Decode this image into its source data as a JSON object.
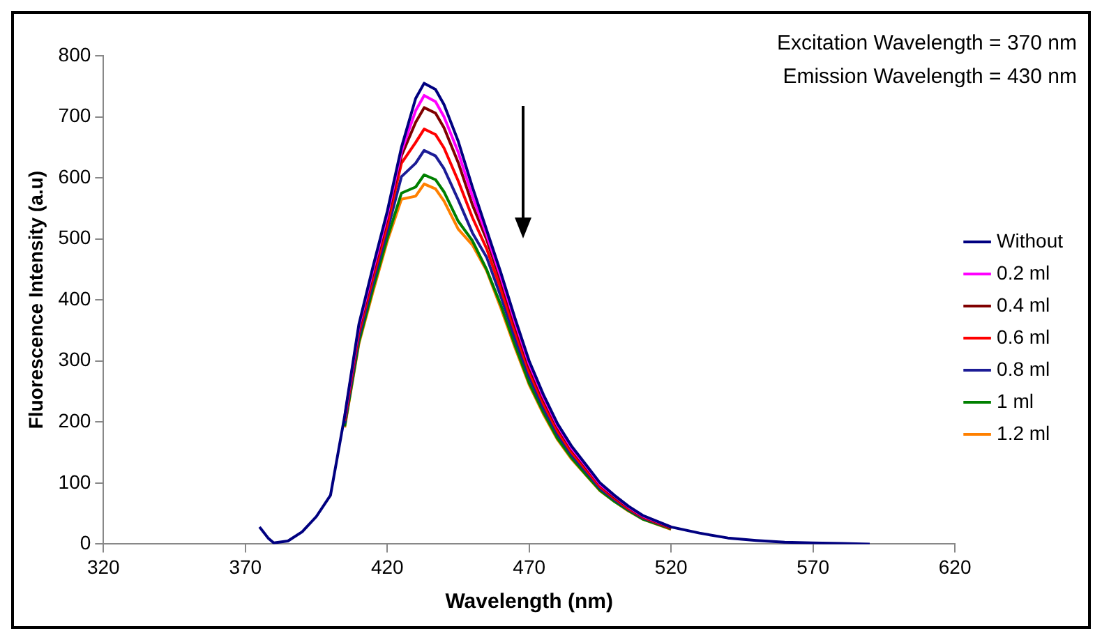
{
  "chart_data": {
    "type": "line",
    "xlabel": "Wavelength (nm)",
    "ylabel": "Fluorescence Intensity (a.u)",
    "annotations": [
      "Excitation Wavelength = 370 nm",
      "Emission Wavelength = 430 nm"
    ],
    "x": [
      375,
      378,
      380,
      385,
      390,
      395,
      400,
      405,
      410,
      415,
      420,
      425,
      430,
      433,
      437,
      440,
      445,
      450,
      455,
      460,
      465,
      470,
      475,
      480,
      485,
      490,
      495,
      500,
      505,
      510,
      520,
      530,
      540,
      550,
      560,
      570,
      580,
      590
    ],
    "series": [
      {
        "name": "Without",
        "color": "#000080",
        "values": [
          28,
          10,
          2,
          5,
          20,
          45,
          80,
          210,
          360,
          455,
          545,
          650,
          730,
          755,
          745,
          720,
          660,
          585,
          515,
          445,
          370,
          300,
          245,
          197,
          160,
          130,
          100,
          80,
          62,
          47,
          28,
          18,
          10,
          6,
          3,
          2,
          1,
          0
        ]
      },
      {
        "name": "0.2 ml",
        "color": "#ff00ff",
        "values": [
          null,
          null,
          null,
          null,
          null,
          null,
          null,
          208,
          356,
          450,
          539,
          643,
          710,
          735,
          725,
          700,
          642,
          570,
          507,
          438,
          364,
          295,
          241,
          194,
          157,
          128,
          98,
          79,
          61,
          46,
          28,
          null,
          null,
          null,
          null,
          null,
          null,
          null
        ]
      },
      {
        "name": "0.4 ml",
        "color": "#800000",
        "values": [
          null,
          null,
          null,
          null,
          null,
          null,
          null,
          206,
          352,
          445,
          534,
          636,
          691,
          715,
          706,
          682,
          625,
          556,
          499,
          431,
          358,
          290,
          237,
          191,
          155,
          126,
          97,
          77,
          60,
          45,
          27,
          null,
          null,
          null,
          null,
          null,
          null,
          null
        ]
      },
      {
        "name": "0.6 ml",
        "color": "#ff0000",
        "values": [
          null,
          null,
          null,
          null,
          null,
          null,
          null,
          202,
          346,
          437,
          523,
          624,
          658,
          680,
          671,
          649,
          595,
          535,
          484,
          418,
          348,
          282,
          230,
          185,
          150,
          122,
          94,
          75,
          58,
          44,
          26,
          null,
          null,
          null,
          null,
          null,
          null,
          null
        ]
      },
      {
        "name": "0.8 ml",
        "color": "#1c1c96",
        "values": [
          null,
          null,
          null,
          null,
          null,
          null,
          null,
          198,
          339,
          429,
          513,
          602,
          624,
          645,
          636,
          615,
          564,
          510,
          470,
          406,
          337,
          274,
          223,
          180,
          146,
          119,
          91,
          73,
          57,
          43,
          26,
          null,
          null,
          null,
          null,
          null,
          null,
          null
        ]
      },
      {
        "name": "1 ml",
        "color": "#008000",
        "values": [
          null,
          null,
          null,
          null,
          null,
          null,
          null,
          193,
          331,
          419,
          501,
          575,
          585,
          605,
          597,
          577,
          529,
          497,
          450,
          392,
          326,
          264,
          216,
          173,
          141,
          114,
          88,
          70,
          55,
          41,
          25,
          null,
          null,
          null,
          null,
          null,
          null,
          null
        ]
      },
      {
        "name": "1.2 ml",
        "color": "#ff8000",
        "values": [
          null,
          null,
          null,
          null,
          null,
          null,
          null,
          191,
          328,
          414,
          496,
          565,
          570,
          590,
          582,
          562,
          516,
          490,
          448,
          387,
          322,
          261,
          213,
          171,
          139,
          113,
          87,
          70,
          54,
          41,
          24,
          null,
          null,
          null,
          null,
          null,
          null,
          null
        ]
      }
    ],
    "xlim": [
      320,
      620
    ],
    "xticks": [
      320,
      370,
      420,
      470,
      520,
      570,
      620
    ],
    "ylim": [
      0,
      800
    ],
    "yticks": [
      0,
      100,
      200,
      300,
      400,
      500,
      600,
      700,
      800
    ],
    "grid": false,
    "legend": "right",
    "marker": "none",
    "line_style": "solid"
  }
}
